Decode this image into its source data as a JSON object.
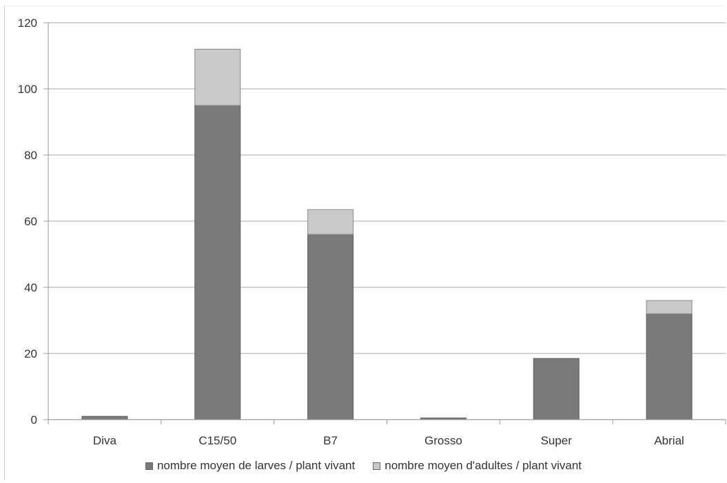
{
  "chart_data": {
    "type": "bar",
    "stacked": true,
    "categories": [
      "Diva",
      "C15/50",
      "B7",
      "Grosso",
      "Super",
      "Abrial"
    ],
    "series": [
      {
        "name": "nombre moyen de larves / plant vivant",
        "color": "#7a7a7a",
        "values": [
          1,
          95,
          56,
          0.5,
          18.5,
          32
        ]
      },
      {
        "name": "nombre moyen d'adultes / plant vivant",
        "color": "#c9c9c9",
        "values": [
          0,
          17,
          7.5,
          0,
          0,
          4
        ]
      }
    ],
    "yticks": [
      "0",
      "20",
      "40",
      "60",
      "80",
      "100",
      "120"
    ],
    "ylim": [
      0,
      120
    ],
    "grid": true,
    "legend_position": "bottom"
  }
}
